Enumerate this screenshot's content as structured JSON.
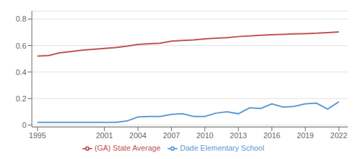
{
  "chart_data": {
    "type": "line",
    "x": [
      1995,
      1996,
      1997,
      1998,
      1999,
      2000,
      2001,
      2002,
      2003,
      2004,
      2005,
      2006,
      2007,
      2008,
      2009,
      2010,
      2011,
      2012,
      2013,
      2014,
      2015,
      2016,
      2017,
      2018,
      2019,
      2020,
      2021,
      2022
    ],
    "series": [
      {
        "name": "Dade Elementary School",
        "color": "#5b9bd5",
        "values": [
          0.02,
          0.02,
          0.02,
          0.02,
          0.02,
          0.02,
          0.02,
          0.02,
          0.03,
          0.06,
          0.065,
          0.065,
          0.08,
          0.085,
          0.065,
          0.065,
          0.09,
          0.1,
          0.085,
          0.13,
          0.125,
          0.16,
          0.135,
          0.14,
          0.16,
          0.165,
          0.12,
          0.175
        ]
      },
      {
        "name": "(GA) State Average",
        "color": "#c0504d",
        "values": [
          0.52,
          0.525,
          0.545,
          0.555,
          0.565,
          0.572,
          0.578,
          0.585,
          0.595,
          0.608,
          0.613,
          0.618,
          0.633,
          0.638,
          0.643,
          0.65,
          0.655,
          0.66,
          0.668,
          0.672,
          0.678,
          0.682,
          0.685,
          0.688,
          0.69,
          0.693,
          0.698,
          0.703
        ]
      }
    ],
    "xlim": [
      1994.5,
      2022.8
    ],
    "xticks": [
      1995,
      2001,
      2004,
      2007,
      2010,
      2013,
      2016,
      2019,
      2022
    ],
    "ylim": [
      -0.015,
      0.86
    ],
    "yticks": [
      0,
      0.2,
      0.4,
      0.6,
      0.8
    ],
    "grid": true,
    "legend": "bottom"
  }
}
